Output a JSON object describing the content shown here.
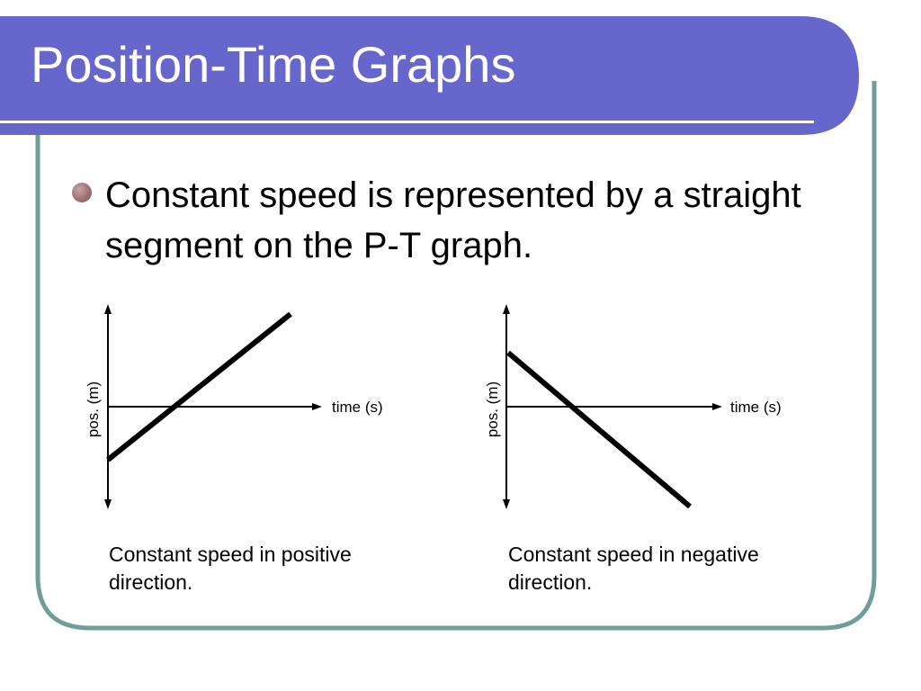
{
  "slide": {
    "title": "Position-Time Graphs",
    "bullet": "Constant speed is represented by a straight segment on the P-T graph.",
    "colors": {
      "title_band": "#6666cc",
      "frame_border": "#6f9e9a",
      "bullet": "#9e7377",
      "line": "#000000"
    }
  },
  "graphs": [
    {
      "y_label": "pos. (m)",
      "x_label": "time (s)",
      "caption_line1": "Constant speed in positive",
      "caption_line2": "direction.",
      "trend": "increasing"
    },
    {
      "y_label": "pos. (m)",
      "x_label": "time (s)",
      "caption_line1": "Constant speed in negative",
      "caption_line2": "direction.",
      "trend": "decreasing"
    }
  ]
}
